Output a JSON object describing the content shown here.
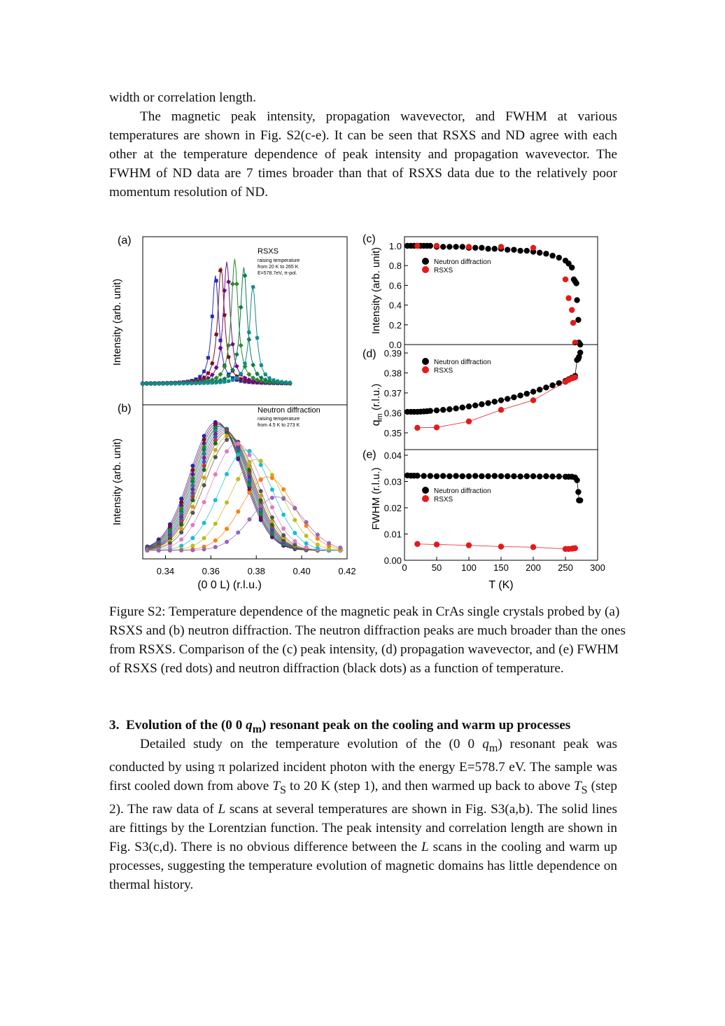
{
  "paragraph1": {
    "text": "width or correlation length."
  },
  "paragraph2": {
    "text": "The magnetic peak intensity, propagation wavevector, and FWHM at various temperatures are shown in Fig. S2(c-e). It can be seen that RSXS and ND agree with each other at the temperature dependence of peak intensity and propagation wavevector. The FWHM of ND data are 7 times broader than that of RSXS data due to the relatively poor momentum resolution of ND."
  },
  "figure": {
    "panel_a": {
      "label": "(a)",
      "legend_title": "RSXS",
      "legend_lines": [
        "raising temperature",
        "from 20 K to 265 K",
        "E=578.7eV, π-pol."
      ],
      "ylabel": "Intensity (arb. unit)"
    },
    "panel_b": {
      "label": "(b)",
      "legend_title": "Neutron diffraction",
      "legend_lines": [
        "raising temperature",
        "from 4.5 K to 273 K"
      ],
      "ylabel": "Intensity (arb. unit)",
      "xlabel": "(0 0 L) (r.l.u.)",
      "xticks": [
        "0.34",
        "0.36",
        "0.38",
        "0.40",
        "0.42"
      ]
    },
    "panel_c": {
      "label": "(c)",
      "ylabel": "Intensity (arb. unit)",
      "yticks": [
        "1.0",
        "0.8",
        "0.6",
        "0.4",
        "0.2",
        "0.0"
      ],
      "legend": [
        "Neutron diffraction",
        "RSXS"
      ]
    },
    "panel_d": {
      "label": "(d)",
      "ylabel": "q",
      "ylabel_sub": "m",
      "ylabel_unit": " (r.l.u.)",
      "yticks": [
        "0.39",
        "0.38",
        "0.37",
        "0.36",
        "0.35"
      ],
      "legend": [
        "Neutron diffraction",
        "RSXS"
      ]
    },
    "panel_e": {
      "label": "(e)",
      "ylabel": "FWHM (r.l.u.)",
      "yticks": [
        "0.04",
        "0.03",
        "0.02",
        "0.01",
        "0.00"
      ],
      "legend": [
        "Neutron diffraction",
        "RSXS"
      ],
      "xlabel": "T (K)",
      "xticks": [
        "0",
        "50",
        "100",
        "150",
        "200",
        "250",
        "300"
      ]
    },
    "colors": {
      "neutron": "#000000",
      "rsxs": "#e41a1c"
    }
  },
  "chart_data": [
    {
      "type": "line",
      "panel": "(a)",
      "ylabel": "Intensity (arb. unit)",
      "note_series_peaks_L": [
        0.362,
        0.3645,
        0.367,
        0.3705,
        0.3745,
        0.3785
      ],
      "peak_heights": [
        0.78,
        0.84,
        0.88,
        0.9,
        0.84,
        0.7
      ]
    },
    {
      "type": "line",
      "panel": "(b)",
      "xlabel": "(0 0 L) (r.l.u.)",
      "xlim": [
        0.33,
        0.42
      ],
      "centers_L": [
        0.3625,
        0.363,
        0.3635,
        0.364,
        0.3645,
        0.365,
        0.3655,
        0.366,
        0.3665,
        0.367,
        0.368,
        0.369,
        0.3715,
        0.3755,
        0.38,
        0.385,
        0.389
      ],
      "heights": [
        0.96,
        0.95,
        0.94,
        0.93,
        0.93,
        0.92,
        0.91,
        0.9,
        0.89,
        0.88,
        0.86,
        0.84,
        0.8,
        0.75,
        0.68,
        0.55,
        0.4
      ]
    },
    {
      "type": "scatter",
      "panel": "(c)",
      "xlabel": "T (K)",
      "ylabel": "Intensity (arb. unit)",
      "xlim": [
        0,
        300
      ],
      "ylim": [
        0.0,
        1.05
      ],
      "series": [
        {
          "name": "Neutron diffraction",
          "x": [
            4.5,
            10,
            15,
            20,
            25,
            30,
            35,
            40,
            50,
            60,
            70,
            80,
            90,
            100,
            110,
            120,
            130,
            140,
            150,
            160,
            170,
            180,
            190,
            200,
            210,
            220,
            230,
            240,
            250,
            255,
            260,
            263,
            265,
            267,
            268,
            270,
            271,
            273
          ],
          "y": [
            1.0,
            1.0,
            1.0,
            1.0,
            1.0,
            1.0,
            1.0,
            1.0,
            0.99,
            0.99,
            0.99,
            0.99,
            0.99,
            0.98,
            0.98,
            0.98,
            0.97,
            0.97,
            0.97,
            0.96,
            0.96,
            0.95,
            0.95,
            0.94,
            0.93,
            0.92,
            0.9,
            0.88,
            0.85,
            0.82,
            0.78,
            0.66,
            0.64,
            0.62,
            0.45,
            0.25,
            0.02,
            0.0
          ]
        },
        {
          "name": "RSXS",
          "x": [
            20,
            50,
            100,
            150,
            200,
            250,
            255,
            260,
            262,
            265
          ],
          "y": [
            1.0,
            1.0,
            0.99,
            0.99,
            0.98,
            0.66,
            0.47,
            0.35,
            0.22,
            0.02
          ]
        }
      ]
    },
    {
      "type": "scatter",
      "panel": "(d)",
      "xlabel": "T (K)",
      "ylabel": "q m (r.l.u.)",
      "xlim": [
        0,
        300
      ],
      "ylim": [
        0.345,
        0.392
      ],
      "series": [
        {
          "name": "Neutron diffraction",
          "x": [
            4.5,
            10,
            15,
            20,
            25,
            30,
            35,
            40,
            50,
            60,
            70,
            80,
            90,
            100,
            110,
            120,
            130,
            140,
            150,
            160,
            170,
            180,
            190,
            200,
            210,
            220,
            230,
            240,
            250,
            255,
            260,
            265,
            268,
            270,
            271,
            273
          ],
          "y": [
            0.3605,
            0.3605,
            0.3605,
            0.3605,
            0.3606,
            0.3607,
            0.3608,
            0.361,
            0.3612,
            0.3615,
            0.3618,
            0.3622,
            0.3627,
            0.3632,
            0.3637,
            0.3643,
            0.3649,
            0.3656,
            0.3663,
            0.367,
            0.3678,
            0.3687,
            0.3696,
            0.3706,
            0.3716,
            0.3727,
            0.3738,
            0.3749,
            0.376,
            0.3768,
            0.3776,
            0.3785,
            0.3865,
            0.387,
            0.388,
            0.3902
          ]
        },
        {
          "name": "RSXS",
          "x": [
            20,
            50,
            100,
            150,
            200,
            250,
            255,
            260,
            262,
            265
          ],
          "y": [
            0.3525,
            0.3527,
            0.3557,
            0.3615,
            0.3663,
            0.3755,
            0.3765,
            0.3772,
            0.3775,
            0.3778
          ]
        }
      ]
    },
    {
      "type": "scatter",
      "panel": "(e)",
      "xlabel": "T (K)",
      "ylabel": "FWHM (r.l.u.)",
      "xlim": [
        0,
        300
      ],
      "ylim": [
        0.0,
        0.04
      ],
      "series": [
        {
          "name": "Neutron diffraction",
          "x": [
            4.5,
            10,
            15,
            20,
            30,
            40,
            50,
            60,
            70,
            80,
            90,
            100,
            110,
            120,
            130,
            140,
            150,
            160,
            170,
            180,
            190,
            200,
            210,
            220,
            230,
            240,
            250,
            255,
            260,
            265,
            268,
            270,
            271,
            273
          ],
          "y": [
            0.0323,
            0.0322,
            0.0322,
            0.0322,
            0.0321,
            0.0321,
            0.032,
            0.0321,
            0.032,
            0.0321,
            0.032,
            0.032,
            0.0321,
            0.032,
            0.032,
            0.0321,
            0.032,
            0.032,
            0.032,
            0.0319,
            0.032,
            0.032,
            0.0319,
            0.032,
            0.0319,
            0.0319,
            0.0318,
            0.0318,
            0.0318,
            0.0315,
            0.0305,
            0.026,
            0.0228,
            0.0228
          ]
        },
        {
          "name": "RSXS",
          "x": [
            20,
            50,
            100,
            150,
            200,
            250,
            255,
            260,
            262,
            265
          ],
          "y": [
            0.0062,
            0.006,
            0.0057,
            0.0052,
            0.005,
            0.0043,
            0.0043,
            0.0044,
            0.0045,
            0.0046
          ]
        }
      ]
    }
  ],
  "caption": {
    "text": "Figure S2: Temperature dependence of the magnetic peak in CrAs single crystals probed by (a) RSXS and (b) neutron diffraction. The neutron diffraction peaks are much broader than the ones from RSXS. Comparison of the (c) peak intensity, (d) propagation wavevector, and (e) FWHM of RSXS (red dots) and neutron diffraction (black dots) as a function of temperature."
  },
  "section": {
    "number": "3.",
    "title_pre": "Evolution of the (0 0 ",
    "title_q": "q",
    "title_sub": "m",
    "title_post": ") resonant peak on the cooling and warm up processes"
  },
  "paragraph3": {
    "s1": "Detailed study on the temperature evolution of the (0 0 ",
    "s1_q": "q",
    "s1_sub": "m",
    "s2": ") resonant peak was conducted by using π polarized incident photon with the energy E=578.7 eV. The sample was first cooled down from above ",
    "ts": "T",
    "ts_sub": "S",
    "s3": " to 20 K (step 1), and then warmed up back to above ",
    "s4": " (step 2). The raw data of ",
    "L": "L",
    "s5": " scans at several temperatures are shown in Fig. S3(a,b). The solid lines are fittings by the Lorentzian function. The peak intensity and correlation length are shown in Fig. S3(c,d). There is no obvious difference between the ",
    "s6": " scans in the cooling and warm up processes, suggesting the temperature evolution of magnetic domains has little dependence on thermal history."
  }
}
